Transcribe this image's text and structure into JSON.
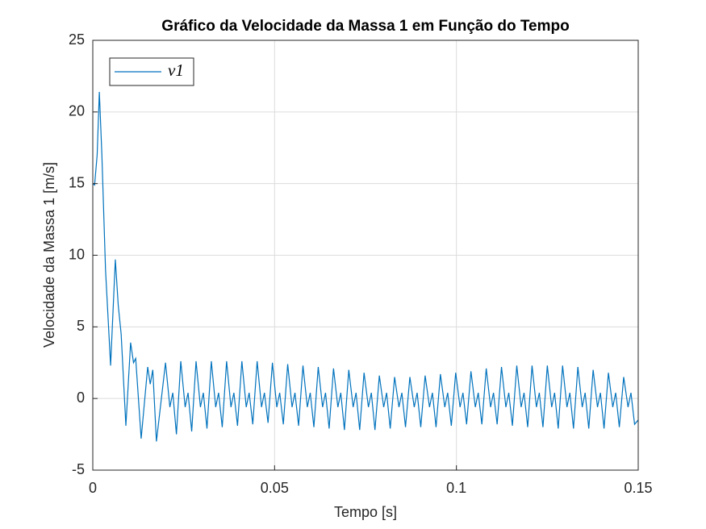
{
  "chart_data": {
    "type": "line",
    "title": "Gráfico da Velocidade da Massa 1 em Função do Tempo",
    "xlabel": "Tempo [s]",
    "ylabel": "Velocidade da Massa 1 [m/s]",
    "xlim": [
      0,
      0.15
    ],
    "xticks": [
      0,
      0.05,
      0.1,
      0.15
    ],
    "ylim": [
      -5,
      25
    ],
    "yticks": [
      -5,
      0,
      5,
      10,
      15,
      20,
      25
    ],
    "grid": true,
    "legend": "top-left",
    "x": [
      0,
      0.0005,
      0.0012,
      0.0018,
      0.0025,
      0.0035,
      0.0049,
      0.0062,
      0.007,
      0.0078,
      0.0091,
      0.0104,
      0.0112,
      0.0118,
      0.0133,
      0.0151,
      0.0158,
      0.0165,
      0.0175,
      0.02,
      0.0212,
      0.022,
      0.023,
      0.0242,
      0.0254,
      0.0262,
      0.0272,
      0.0284,
      0.0296,
      0.0304,
      0.0314,
      0.0326,
      0.0338,
      0.0346,
      0.0356,
      0.0368,
      0.038,
      0.0388,
      0.0398,
      0.041,
      0.0422,
      0.043,
      0.044,
      0.0452,
      0.0464,
      0.0472,
      0.0482,
      0.0494,
      0.0506,
      0.0514,
      0.0524,
      0.0536,
      0.0548,
      0.0556,
      0.0566,
      0.0578,
      0.059,
      0.0598,
      0.0608,
      0.062,
      0.0632,
      0.064,
      0.065,
      0.0662,
      0.0674,
      0.0682,
      0.0692,
      0.0704,
      0.0716,
      0.0724,
      0.0734,
      0.0746,
      0.0758,
      0.0766,
      0.0776,
      0.0788,
      0.08,
      0.0808,
      0.0818,
      0.083,
      0.0842,
      0.085,
      0.086,
      0.0872,
      0.0884,
      0.0892,
      0.0902,
      0.0914,
      0.0926,
      0.0934,
      0.0944,
      0.0956,
      0.0968,
      0.0976,
      0.0986,
      0.0998,
      0.101,
      0.1018,
      0.1028,
      0.104,
      0.1052,
      0.106,
      0.107,
      0.1082,
      0.1094,
      0.1102,
      0.1112,
      0.1124,
      0.1136,
      0.1144,
      0.1154,
      0.1166,
      0.1178,
      0.1186,
      0.1196,
      0.1208,
      0.122,
      0.1228,
      0.1238,
      0.125,
      0.1262,
      0.127,
      0.128,
      0.1292,
      0.1304,
      0.1312,
      0.1322,
      0.1334,
      0.1346,
      0.1354,
      0.1364,
      0.1376,
      0.1388,
      0.1396,
      0.1406,
      0.1418,
      0.143,
      0.1438,
      0.1448,
      0.146,
      0.1472,
      0.148,
      0.149,
      0.15
    ],
    "series": [
      {
        "name": "v1",
        "color": "#0072bd",
        "values": [
          15.0,
          14.9,
          17,
          21.4,
          17,
          9,
          2.3,
          9.7,
          6.5,
          4.5,
          -1.9,
          3.9,
          2.5,
          2.8,
          -2.8,
          2.2,
          1.0,
          2.0,
          -3.0,
          2.5,
          -0.6,
          0.4,
          -2.5,
          2.6,
          -0.6,
          0.4,
          -2.3,
          2.6,
          -0.6,
          0.4,
          -2.1,
          2.6,
          -0.6,
          0.4,
          -2.0,
          2.6,
          -0.6,
          0.4,
          -1.9,
          2.6,
          -0.6,
          0.4,
          -1.8,
          2.6,
          -0.6,
          0.4,
          -1.7,
          2.5,
          -0.6,
          0.4,
          -1.8,
          2.4,
          -0.6,
          0.4,
          -1.9,
          2.3,
          -0.6,
          0.4,
          -2.0,
          2.2,
          -0.6,
          0.4,
          -2.1,
          2.1,
          -0.6,
          0.4,
          -2.2,
          2.0,
          -0.6,
          0.4,
          -2.2,
          1.8,
          -0.6,
          0.4,
          -2.2,
          1.6,
          -0.6,
          0.4,
          -2.1,
          1.5,
          -0.6,
          0.4,
          -2.0,
          1.5,
          -0.6,
          0.4,
          -2.0,
          1.6,
          -0.6,
          0.4,
          -2.0,
          1.7,
          -0.6,
          0.4,
          -1.9,
          1.8,
          -0.6,
          0.4,
          -1.8,
          1.9,
          -0.6,
          0.4,
          -1.8,
          2.1,
          -0.6,
          0.4,
          -1.8,
          2.2,
          -0.6,
          0.4,
          -1.9,
          2.3,
          -0.6,
          0.4,
          -2.0,
          2.3,
          -0.6,
          0.4,
          -2.0,
          2.3,
          -0.6,
          0.4,
          -2.1,
          2.3,
          -0.6,
          0.4,
          -2.1,
          2.2,
          -0.6,
          0.4,
          -2.1,
          2.0,
          -0.6,
          0.4,
          -2.1,
          1.8,
          -0.6,
          0.4,
          -2.0,
          1.5,
          -0.6,
          0.4,
          -1.8,
          -1.5
        ]
      }
    ]
  }
}
